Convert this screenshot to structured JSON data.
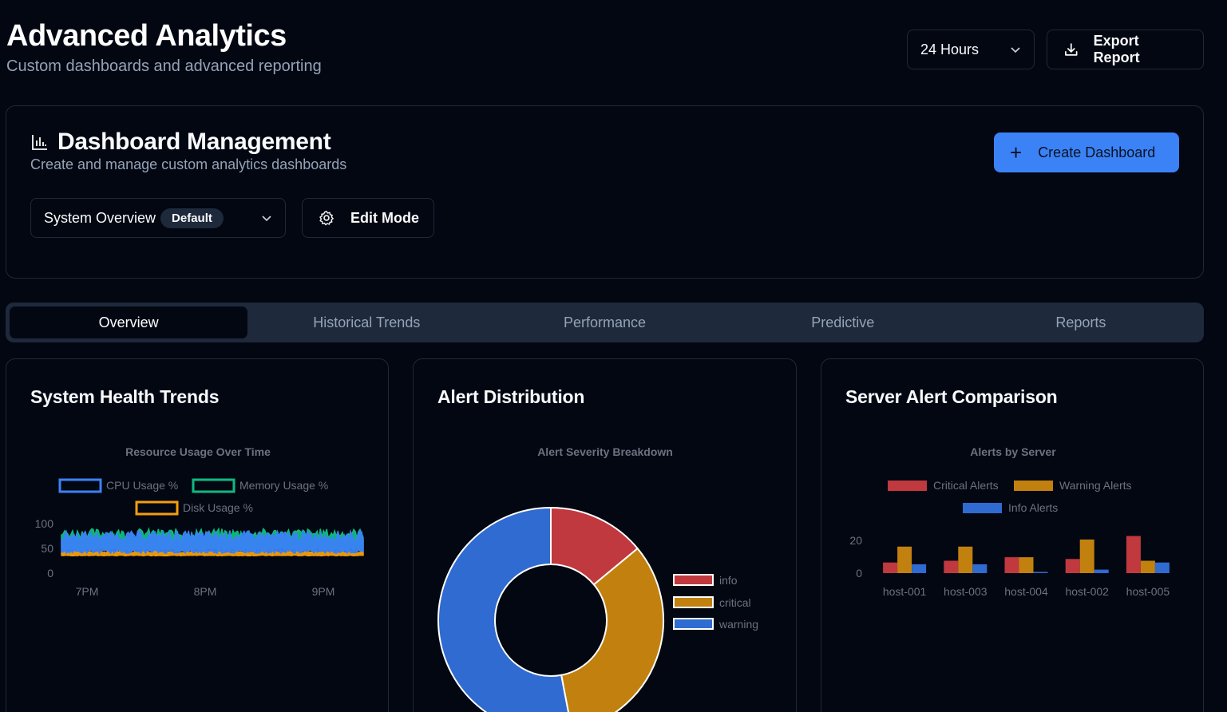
{
  "header": {
    "title": "Advanced Analytics",
    "subtitle": "Custom dashboards and advanced reporting",
    "time_range": "24 Hours",
    "export_label": "Export Report"
  },
  "management": {
    "title": "Dashboard Management",
    "subtitle": "Create and manage custom analytics dashboards",
    "create_label": "Create Dashboard",
    "selected_dashboard": "System Overview",
    "default_badge": "Default",
    "edit_label": "Edit Mode"
  },
  "tabs": [
    {
      "label": "Overview",
      "active": true
    },
    {
      "label": "Historical Trends",
      "active": false
    },
    {
      "label": "Performance",
      "active": false
    },
    {
      "label": "Predictive",
      "active": false
    },
    {
      "label": "Reports",
      "active": false
    }
  ],
  "cards": {
    "health_title": "System Health Trends",
    "alert_title": "Alert Distribution",
    "server_title": "Server Alert Comparison"
  },
  "colors": {
    "accent": "#3b82f6",
    "cpu": "#3b82f6",
    "memory": "#10b981",
    "disk": "#f59e0b",
    "info": "#c0393f",
    "critical": "#c2810f",
    "warning": "#2f6bd0"
  },
  "chart_data": [
    {
      "type": "area",
      "title": "Resource Usage Over Time",
      "xlabel": "",
      "ylabel": "",
      "x_ticks": [
        "7PM",
        "8PM",
        "9PM"
      ],
      "y_ticks": [
        0,
        50,
        100
      ],
      "ylim": [
        0,
        100
      ],
      "legend_position": "top",
      "series": [
        {
          "name": "CPU Usage %",
          "approx_range": [
            40,
            85
          ]
        },
        {
          "name": "Memory Usage %",
          "approx_range": [
            45,
            90
          ]
        },
        {
          "name": "Disk Usage %",
          "approx_range": [
            35,
            45
          ]
        }
      ]
    },
    {
      "type": "pie",
      "title": "Alert Severity Breakdown",
      "legend_position": "right",
      "labels": [
        "info",
        "critical",
        "warning"
      ],
      "values": [
        14,
        33,
        53
      ]
    },
    {
      "type": "bar",
      "title": "Alerts by Server",
      "legend_position": "top",
      "categories": [
        "host-001",
        "host-003",
        "host-004",
        "host-002",
        "host-005"
      ],
      "y_ticks": [
        0,
        20
      ],
      "ylim": [
        0,
        28
      ],
      "series": [
        {
          "name": "Critical Alerts",
          "values": [
            6,
            7,
            9,
            8,
            21
          ]
        },
        {
          "name": "Warning Alerts",
          "values": [
            15,
            15,
            9,
            19,
            7
          ]
        },
        {
          "name": "Info Alerts",
          "values": [
            5,
            5,
            0,
            2,
            6
          ]
        }
      ]
    }
  ]
}
